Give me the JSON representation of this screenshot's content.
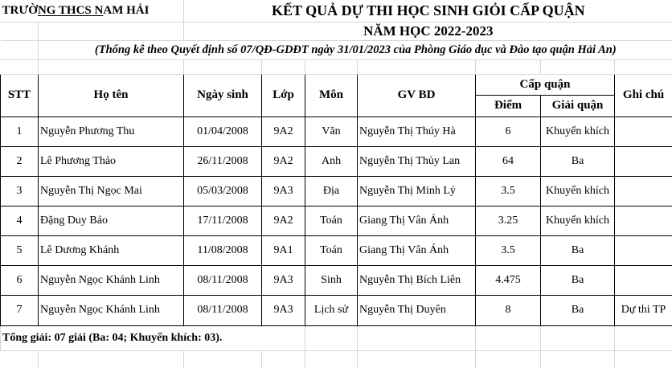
{
  "school": {
    "prefix": "TRƯỜ",
    "underlined": "NG THCS N",
    "suffix": "AM HẢI"
  },
  "title": "KẾT QUẢ DỰ THI HỌC SINH GIỎI CẤP QUẬN",
  "school_year": "NĂM HỌC 2022-2023",
  "subtitle": "(Thống kê theo Quyết định số 07/QĐ-GDĐT ngày 31/01/2023 của Phòng Giáo dục và Đào tạo quận Hải An)",
  "headers": {
    "stt": "STT",
    "name": "Họ tên",
    "dob": "Ngày sinh",
    "class": "Lớp",
    "subject": "Môn",
    "teacher": "GV BD",
    "level": "Cấp quận",
    "score": "Điểm",
    "prize": "Giải quận",
    "note": "Ghi chú"
  },
  "rows": [
    {
      "stt": "1",
      "name": "Nguyễn Phương Thu",
      "dob": "01/04/2008",
      "class": "9A2",
      "subject": "Văn",
      "teacher": "Nguyễn Thị Thúy Hà",
      "score": "6",
      "prize": "Khuyến khích",
      "note": ""
    },
    {
      "stt": "2",
      "name": "Lê Phương Thảo",
      "dob": "26/11/2008",
      "class": "9A2",
      "subject": "Anh",
      "teacher": "Nguyễn Thị Thủy Lan",
      "score": "64",
      "prize": "Ba",
      "note": ""
    },
    {
      "stt": "3",
      "name": "Nguyễn Thị Ngọc Mai",
      "dob": "05/03/2008",
      "class": "9A3",
      "subject": "Địa",
      "teacher": "Nguyễn Thị Minh Lý",
      "score": "3.5",
      "prize": "Khuyến khích",
      "note": ""
    },
    {
      "stt": "4",
      "name": "Đặng Duy Bảo",
      "dob": "17/11/2008",
      "class": "9A2",
      "subject": "Toán",
      "teacher": "Giang Thị Vân Ánh",
      "score": "3.25",
      "prize": "Khuyến khích",
      "note": ""
    },
    {
      "stt": "5",
      "name": "Lê Dương Khánh",
      "dob": "11/08/2008",
      "class": "9A1",
      "subject": "Toán",
      "teacher": "Giang Thị Vân Ánh",
      "score": "3.5",
      "prize": "Ba",
      "note": ""
    },
    {
      "stt": "6",
      "name": "Nguyễn Ngọc Khánh Linh",
      "dob": "08/11/2008",
      "class": "9A3",
      "subject": "Sinh",
      "teacher": "Nguyễn Thị Bích Liên",
      "score": "4.475",
      "prize": "Ba",
      "note": ""
    },
    {
      "stt": "7",
      "name": "Nguyễn Ngọc Khánh Linh",
      "dob": "08/11/2008",
      "class": "9A3",
      "subject": "Lịch sử",
      "teacher": "Nguyễn Thị Duyên",
      "score": "8",
      "prize": "Ba",
      "note": "Dự thi TP"
    }
  ],
  "summary": "Tổng giải: 07 giải (Ba: 04; Khuyến khích: 03)."
}
